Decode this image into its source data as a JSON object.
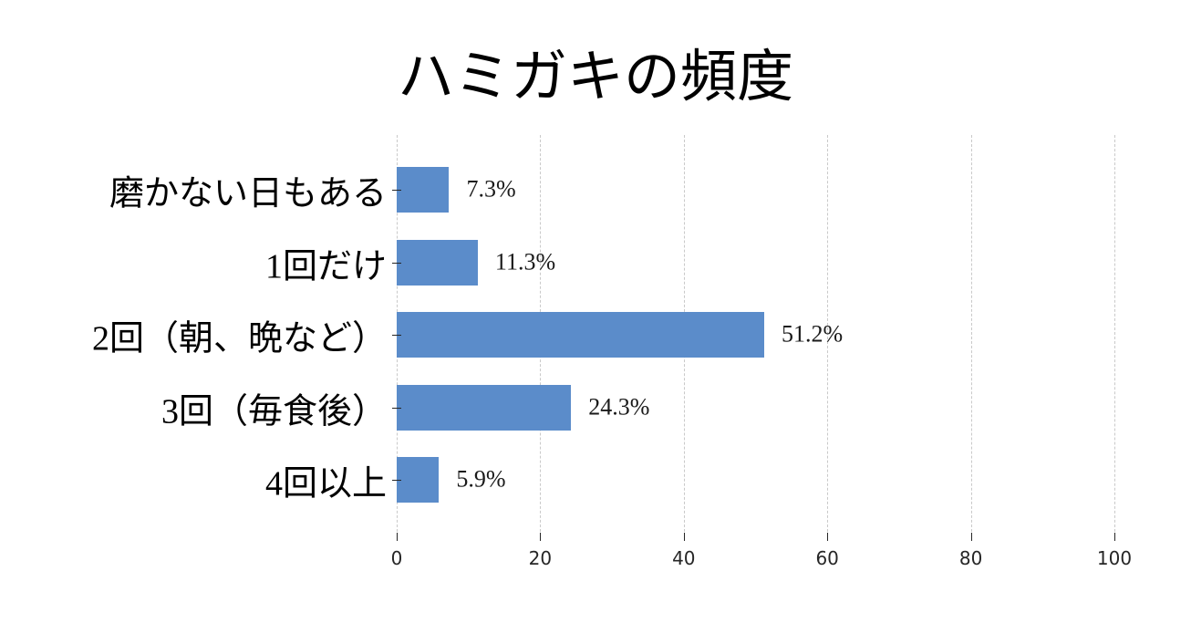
{
  "chart_data": {
    "type": "bar",
    "orientation": "horizontal",
    "title": "ハミガキの頻度",
    "categories": [
      "磨かない日もある",
      "1回だけ",
      "2回（朝、晩など）",
      "3回（毎食後）",
      "4回以上"
    ],
    "values": [
      7.3,
      11.3,
      51.2,
      24.3,
      5.9
    ],
    "data_labels": [
      "7.3%",
      "11.3%",
      "51.2%",
      "24.3%",
      "5.9%"
    ],
    "xlabel": "",
    "ylabel": "",
    "xlim": [
      0,
      100
    ],
    "x_ticks": [
      0,
      20,
      40,
      60,
      80,
      100
    ],
    "grid": "vertical-dashed",
    "legend": "none",
    "bar_color": "#5b8cca"
  },
  "colors": {
    "bar": "#5b8cca",
    "gridline": "#c9c9c9",
    "text": "#000000",
    "tick": "#262626",
    "background": "#ffffff"
  }
}
